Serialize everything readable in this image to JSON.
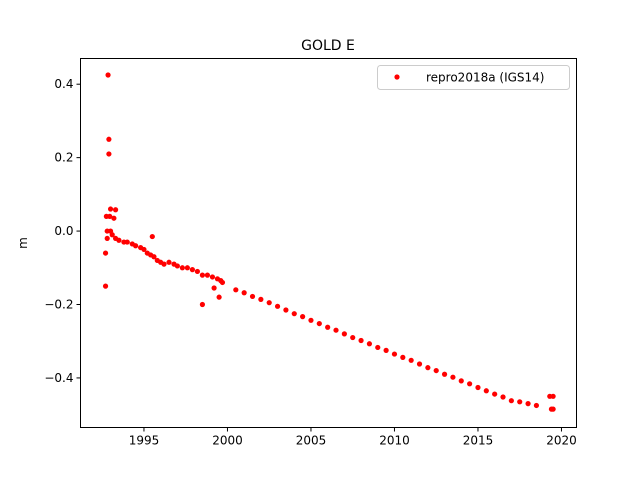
{
  "chart_data": {
    "type": "scatter",
    "title": "GOLD E",
    "xlabel": "",
    "ylabel": "m",
    "xlim": [
      1991.2,
      2020.9
    ],
    "ylim": [
      -0.535,
      0.47
    ],
    "xticks": [
      1995,
      2000,
      2005,
      2010,
      2015,
      2020
    ],
    "yticks": [
      -0.4,
      -0.2,
      0.0,
      0.2,
      0.4
    ],
    "ytick_labels": [
      "−0.4",
      "−0.2",
      "0.0",
      "0.2",
      "0.4"
    ],
    "grid": false,
    "legend_position": "top-right",
    "series": [
      {
        "name": "repro2018a (IGS14)",
        "color": "#ff0000",
        "marker": "dot",
        "points": [
          [
            1992.7,
            -0.06
          ],
          [
            1992.7,
            -0.15
          ],
          [
            1992.75,
            0.04
          ],
          [
            1992.8,
            0.0
          ],
          [
            1992.8,
            -0.02
          ],
          [
            1992.85,
            0.425
          ],
          [
            1992.9,
            0.25
          ],
          [
            1992.9,
            0.21
          ],
          [
            1992.95,
            0.04
          ],
          [
            1993.0,
            0.06
          ],
          [
            1993.0,
            0.0
          ],
          [
            1993.1,
            -0.01
          ],
          [
            1993.2,
            0.035
          ],
          [
            1993.3,
            0.058
          ],
          [
            1993.3,
            -0.02
          ],
          [
            1993.5,
            -0.025
          ],
          [
            1993.8,
            -0.03
          ],
          [
            1994.0,
            -0.03
          ],
          [
            1994.3,
            -0.035
          ],
          [
            1994.5,
            -0.04
          ],
          [
            1994.8,
            -0.045
          ],
          [
            1995.0,
            -0.05
          ],
          [
            1995.2,
            -0.06
          ],
          [
            1995.4,
            -0.065
          ],
          [
            1995.5,
            -0.015
          ],
          [
            1995.6,
            -0.07
          ],
          [
            1995.8,
            -0.08
          ],
          [
            1996.0,
            -0.085
          ],
          [
            1996.2,
            -0.09
          ],
          [
            1996.5,
            -0.085
          ],
          [
            1996.8,
            -0.09
          ],
          [
            1997.0,
            -0.095
          ],
          [
            1997.3,
            -0.1
          ],
          [
            1997.6,
            -0.1
          ],
          [
            1997.9,
            -0.105
          ],
          [
            1998.2,
            -0.11
          ],
          [
            1998.5,
            -0.12
          ],
          [
            1998.5,
            -0.2
          ],
          [
            1998.8,
            -0.12
          ],
          [
            1999.1,
            -0.125
          ],
          [
            1999.2,
            -0.155
          ],
          [
            1999.4,
            -0.13
          ],
          [
            1999.5,
            -0.18
          ],
          [
            1999.6,
            -0.135
          ],
          [
            1999.7,
            -0.14
          ],
          [
            2000.5,
            -0.16
          ],
          [
            2001.0,
            -0.168
          ],
          [
            2001.5,
            -0.178
          ],
          [
            2002.0,
            -0.186
          ],
          [
            2002.5,
            -0.195
          ],
          [
            2003.0,
            -0.205
          ],
          [
            2003.5,
            -0.215
          ],
          [
            2004.0,
            -0.225
          ],
          [
            2004.5,
            -0.233
          ],
          [
            2005.0,
            -0.243
          ],
          [
            2005.5,
            -0.252
          ],
          [
            2006.0,
            -0.262
          ],
          [
            2006.5,
            -0.27
          ],
          [
            2007.0,
            -0.28
          ],
          [
            2007.5,
            -0.29
          ],
          [
            2008.0,
            -0.298
          ],
          [
            2008.5,
            -0.307
          ],
          [
            2009.0,
            -0.317
          ],
          [
            2009.5,
            -0.325
          ],
          [
            2010.0,
            -0.335
          ],
          [
            2010.5,
            -0.344
          ],
          [
            2011.0,
            -0.352
          ],
          [
            2011.5,
            -0.362
          ],
          [
            2012.0,
            -0.372
          ],
          [
            2012.5,
            -0.38
          ],
          [
            2013.0,
            -0.39
          ],
          [
            2013.5,
            -0.398
          ],
          [
            2014.0,
            -0.408
          ],
          [
            2014.5,
            -0.416
          ],
          [
            2015.0,
            -0.426
          ],
          [
            2015.5,
            -0.435
          ],
          [
            2016.0,
            -0.444
          ],
          [
            2016.5,
            -0.452
          ],
          [
            2017.0,
            -0.462
          ],
          [
            2017.5,
            -0.465
          ],
          [
            2018.0,
            -0.47
          ],
          [
            2018.5,
            -0.475
          ],
          [
            2019.3,
            -0.45
          ],
          [
            2019.4,
            -0.485
          ],
          [
            2019.5,
            -0.45
          ],
          [
            2019.5,
            -0.485
          ]
        ]
      }
    ]
  }
}
